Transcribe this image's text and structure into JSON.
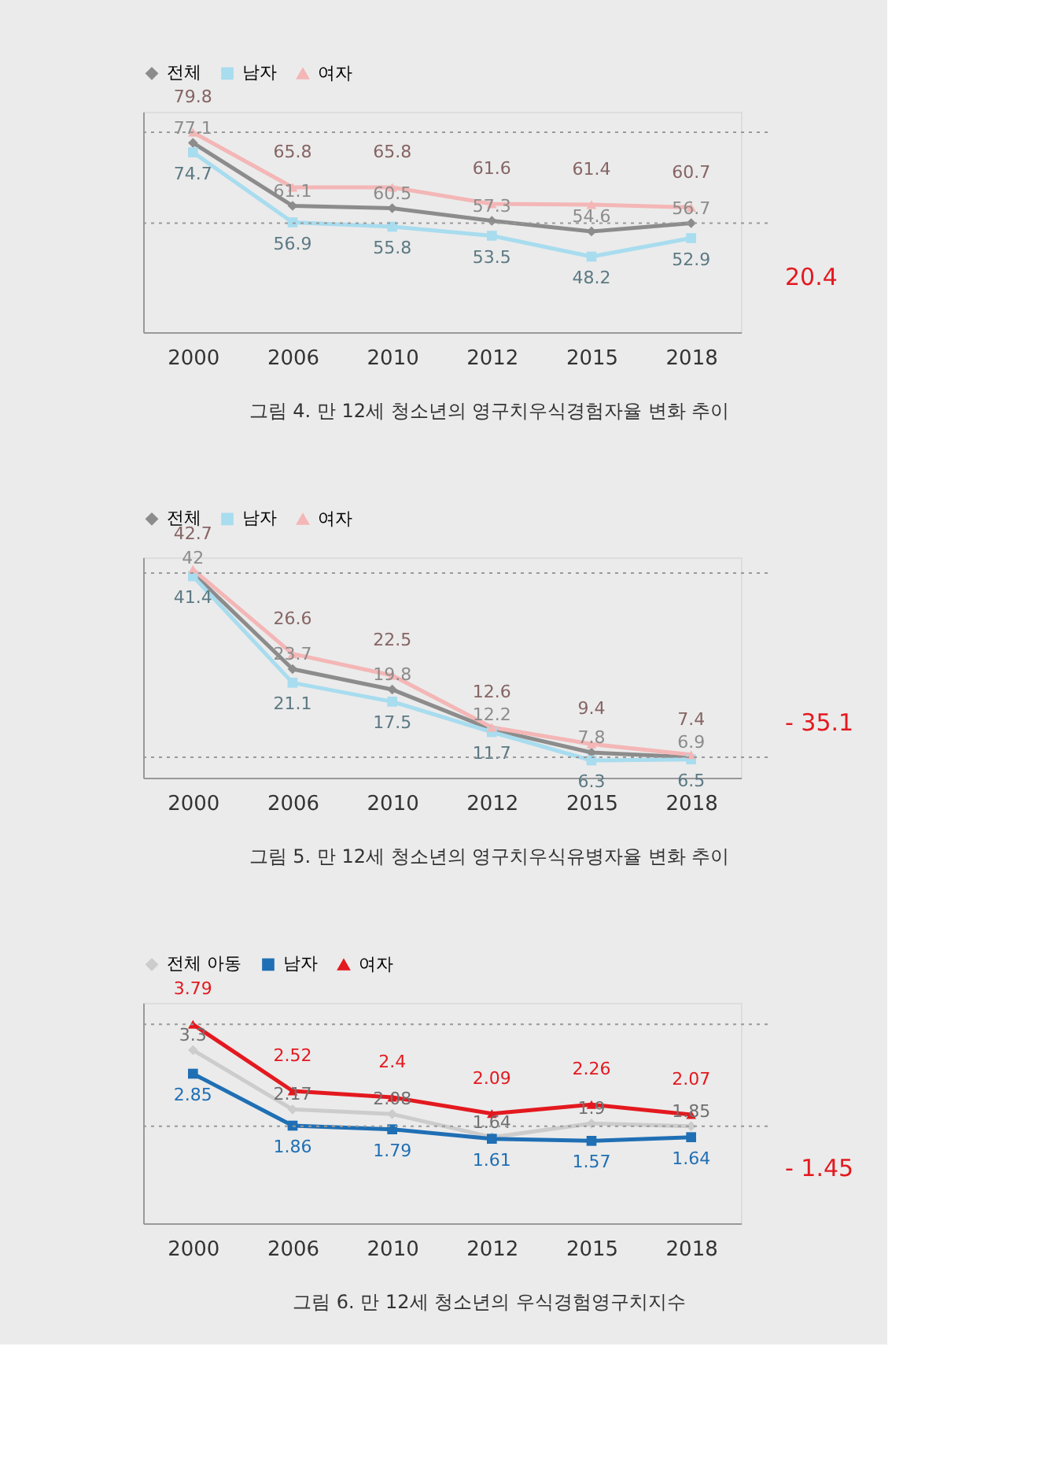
{
  "chart_data": [
    {
      "type": "line",
      "categories": [
        "2000",
        "2006",
        "2010",
        "2012",
        "2015",
        "2018"
      ],
      "ylim": [
        29,
        85
      ],
      "tick_labels": "x",
      "data_labels": true,
      "legend": "top",
      "grid": false,
      "series": [
        {
          "name": "전체",
          "color": "#8c8c8c",
          "marker": "diamond",
          "values": [
            77.1,
            61.1,
            60.5,
            57.3,
            54.6,
            56.7
          ]
        },
        {
          "name": "남자",
          "color": "#a8dcef",
          "marker": "square",
          "values": [
            74.7,
            56.9,
            55.8,
            53.5,
            48.2,
            52.9
          ]
        },
        {
          "name": "여자",
          "color": "#f4b6b6",
          "marker": "triangle",
          "values": [
            79.8,
            65.8,
            65.8,
            61.6,
            61.4,
            60.7
          ]
        }
      ],
      "ref_lines": [
        {
          "axis": "y",
          "value": 79.8,
          "line_style": "dotted",
          "color": "#999999"
        },
        {
          "axis": "y",
          "value": 56.7,
          "line_style": "dotted",
          "color": "#999999"
        }
      ],
      "annotations": [
        "20.4",
        "그림 4. 만 12세 청소년의 영구치우식경험자율 변화 추이"
      ]
    },
    {
      "type": "line",
      "categories": [
        "2000",
        "2006",
        "2010",
        "2012",
        "2015",
        "2018"
      ],
      "ylim": [
        3,
        45
      ],
      "tick_labels": "x",
      "data_labels": true,
      "legend": "top",
      "grid": false,
      "series": [
        {
          "name": "전체",
          "color": "#8c8c8c",
          "marker": "diamond",
          "values": [
            42,
            23.7,
            19.8,
            12.2,
            7.8,
            6.9
          ]
        },
        {
          "name": "남자",
          "color": "#a8dcef",
          "marker": "square",
          "values": [
            41.4,
            21.1,
            17.5,
            11.7,
            6.3,
            6.5
          ]
        },
        {
          "name": "여자",
          "color": "#f4b6b6",
          "marker": "triangle",
          "values": [
            42.7,
            26.6,
            22.5,
            12.6,
            9.4,
            7.4
          ]
        }
      ],
      "ref_lines": [
        {
          "axis": "y",
          "value": 42,
          "line_style": "dotted",
          "color": "#999999"
        },
        {
          "axis": "y",
          "value": 6.9,
          "line_style": "dotted",
          "color": "#999999"
        }
      ],
      "annotations": [
        "- 35.1",
        "그림 5. 만 12세 청소년의 영구치우식유병자율 변화 추이"
      ]
    },
    {
      "type": "line",
      "categories": [
        "2000",
        "2006",
        "2010",
        "2012",
        "2015",
        "2018"
      ],
      "ylim": [
        0,
        4.2
      ],
      "tick_labels": "x",
      "data_labels": true,
      "legend": "top",
      "grid": false,
      "series": [
        {
          "name": "전체 아동",
          "color": "#cccccc",
          "marker": "diamond",
          "values": [
            3.3,
            2.17,
            2.08,
            1.64,
            1.9,
            1.85
          ]
        },
        {
          "name": "남자",
          "color": "#1f6fb4",
          "marker": "square",
          "values": [
            2.85,
            1.86,
            1.79,
            1.61,
            1.57,
            1.64
          ]
        },
        {
          "name": "여자",
          "color": "#e3191f",
          "marker": "triangle",
          "values": [
            3.79,
            2.52,
            2.4,
            2.09,
            2.26,
            2.07
          ]
        }
      ],
      "ref_lines": [
        {
          "axis": "y",
          "value": 3.79,
          "line_style": "dotted",
          "color": "#999999"
        },
        {
          "axis": "y",
          "value": 1.85,
          "line_style": "dotted",
          "color": "#999999"
        }
      ],
      "annotations": [
        "- 1.45",
        "그림 6. 만 12세 청소년의 우식경험영구치지수"
      ]
    }
  ]
}
